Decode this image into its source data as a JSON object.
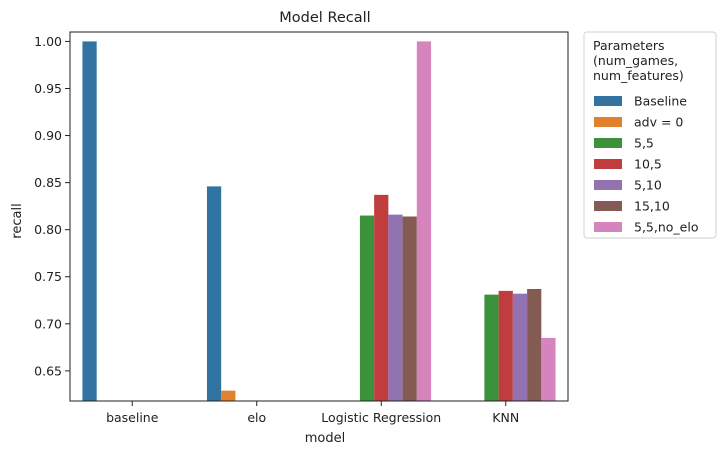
{
  "chart_data": {
    "type": "bar",
    "title": "Model Recall",
    "xlabel": "model",
    "ylabel": "recall",
    "categories": [
      "baseline",
      "elo",
      "Logistic Regression",
      "KNN"
    ],
    "ylim": [
      0.618,
      1.01
    ],
    "yticks": [
      "0.65",
      "0.70",
      "0.75",
      "0.80",
      "0.85",
      "0.90",
      "0.95",
      "1.00"
    ],
    "grid": false,
    "legend": {
      "title_lines": [
        "Parameters",
        "(num_games,",
        " num_features)"
      ],
      "placement": "outside-top-right"
    },
    "series": [
      {
        "name": "Baseline",
        "color": "#3274a1",
        "values": [
          1.0,
          0.846,
          null,
          null
        ]
      },
      {
        "name": "adv = 0",
        "color": "#e1812c",
        "values": [
          null,
          0.629,
          null,
          null
        ]
      },
      {
        "name": "5,5",
        "color": "#3a923a",
        "values": [
          null,
          null,
          0.815,
          0.731
        ]
      },
      {
        "name": "10,5",
        "color": "#c03d3e",
        "values": [
          null,
          null,
          0.837,
          0.735
        ]
      },
      {
        "name": "5,10",
        "color": "#9372b2",
        "values": [
          null,
          null,
          0.816,
          0.732
        ]
      },
      {
        "name": "15,10",
        "color": "#845b53",
        "values": [
          null,
          null,
          0.814,
          0.737
        ]
      },
      {
        "name": "5,5,no_elo",
        "color": "#d684bd",
        "values": [
          null,
          null,
          1.0,
          0.685
        ]
      }
    ]
  }
}
